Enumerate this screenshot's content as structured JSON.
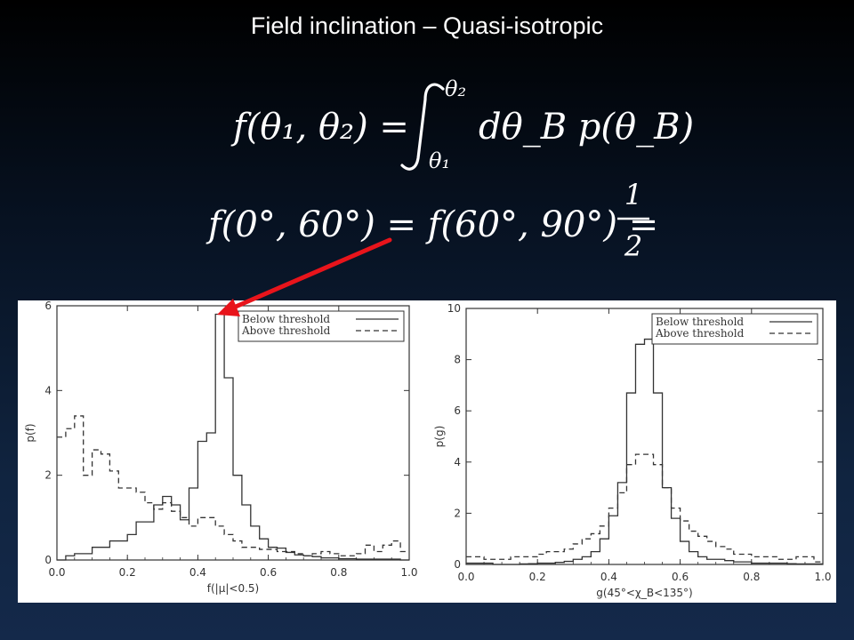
{
  "slide": {
    "title": "Field inclination – Quasi-isotropic"
  },
  "equations": [
    {
      "id": "eq1",
      "lhs": "f(θ₁, θ₂) =",
      "integral_upper": "θ₂",
      "integral_lower": "θ₁",
      "integrand": "dθ_B p(θ_B)"
    },
    {
      "id": "eq2",
      "lhs": "f(0°, 60°) = f(60°, 90°) =",
      "frac_num": "1",
      "frac_den": "2"
    }
  ],
  "colors": {
    "background_top": "#000000",
    "background_bottom": "#14294a",
    "arrow": "#e8141b",
    "plot_ink": "#333333"
  },
  "chart_data": [
    {
      "type": "line",
      "style": "step-histogram",
      "xlabel": "f(|μ|<0.5)",
      "ylabel": "p(f)",
      "xlim": [
        0.0,
        1.0
      ],
      "ylim": [
        0,
        6
      ],
      "xticks": [
        0.0,
        0.2,
        0.4,
        0.6,
        0.8,
        1.0
      ],
      "xtick_labels": [
        "0.0",
        "0.2",
        "0.4",
        "0.6",
        "0.8",
        "1.0"
      ],
      "yticks": [
        0,
        2,
        4,
        6
      ],
      "ytick_labels": [
        "0",
        "2",
        "4",
        "6"
      ],
      "legend_position": "top-right",
      "legend": [
        "Below threshold",
        "Above threshold"
      ],
      "bin_edges": [
        0.0,
        0.025,
        0.05,
        0.075,
        0.1,
        0.125,
        0.15,
        0.175,
        0.2,
        0.225,
        0.25,
        0.275,
        0.3,
        0.325,
        0.35,
        0.375,
        0.4,
        0.425,
        0.45,
        0.475,
        0.5,
        0.525,
        0.55,
        0.575,
        0.6,
        0.625,
        0.65,
        0.675,
        0.7,
        0.725,
        0.75,
        0.775,
        0.8,
        0.825,
        0.85,
        0.875,
        0.9,
        0.925,
        0.95,
        0.975,
        1.0
      ],
      "series": [
        {
          "name": "Below threshold",
          "dash": "solid",
          "values": [
            0.0,
            0.1,
            0.15,
            0.15,
            0.3,
            0.3,
            0.45,
            0.45,
            0.6,
            0.9,
            0.9,
            1.3,
            1.5,
            1.3,
            0.95,
            1.7,
            2.8,
            3.0,
            5.8,
            4.3,
            2.0,
            1.3,
            0.8,
            0.5,
            0.3,
            0.28,
            0.18,
            0.12,
            0.1,
            0.08,
            0.05,
            0.05,
            0.03,
            0.03,
            0.02,
            0.02,
            0.02,
            0.02,
            0.02,
            0.0
          ]
        },
        {
          "name": "Above threshold",
          "dash": "dashed",
          "values": [
            2.9,
            3.1,
            3.4,
            2.0,
            2.6,
            2.5,
            2.1,
            1.7,
            1.7,
            1.6,
            1.35,
            1.2,
            1.35,
            1.15,
            1.0,
            0.8,
            1.0,
            1.0,
            0.8,
            0.6,
            0.45,
            0.3,
            0.3,
            0.25,
            0.25,
            0.2,
            0.2,
            0.15,
            0.1,
            0.15,
            0.2,
            0.15,
            0.1,
            0.1,
            0.15,
            0.35,
            0.2,
            0.35,
            0.45,
            0.2
          ]
        }
      ]
    },
    {
      "type": "line",
      "style": "step-histogram",
      "xlabel": "g(45°<χ_B<135°)",
      "ylabel": "p(g)",
      "xlim": [
        0.0,
        1.0
      ],
      "ylim": [
        0,
        10
      ],
      "xticks": [
        0.0,
        0.2,
        0.4,
        0.6,
        0.8,
        1.0
      ],
      "xtick_labels": [
        "0.0",
        "0.2",
        "0.4",
        "0.6",
        "0.8",
        "1.0"
      ],
      "yticks": [
        0,
        2,
        4,
        6,
        8,
        10
      ],
      "ytick_labels": [
        "0",
        "2",
        "4",
        "6",
        "8",
        "10"
      ],
      "legend_position": "top-right",
      "legend": [
        "Below threshold",
        "Above threshold"
      ],
      "bin_edges": [
        0.0,
        0.025,
        0.05,
        0.075,
        0.1,
        0.125,
        0.15,
        0.175,
        0.2,
        0.225,
        0.25,
        0.275,
        0.3,
        0.325,
        0.35,
        0.375,
        0.4,
        0.425,
        0.45,
        0.475,
        0.5,
        0.525,
        0.55,
        0.575,
        0.6,
        0.625,
        0.65,
        0.675,
        0.7,
        0.725,
        0.75,
        0.775,
        0.8,
        0.825,
        0.85,
        0.875,
        0.9,
        0.925,
        0.95,
        0.975,
        1.0
      ],
      "series": [
        {
          "name": "Below threshold",
          "dash": "solid",
          "values": [
            0.05,
            0.05,
            0.05,
            0.0,
            0.0,
            0.0,
            0.02,
            0.03,
            0.05,
            0.05,
            0.08,
            0.12,
            0.2,
            0.3,
            0.5,
            1.0,
            1.9,
            3.2,
            6.7,
            8.6,
            8.8,
            6.7,
            3.0,
            1.8,
            0.9,
            0.5,
            0.3,
            0.2,
            0.2,
            0.15,
            0.1,
            0.1,
            0.05,
            0.05,
            0.05,
            0.05,
            0.03,
            0.02,
            0.02,
            0.02
          ]
        },
        {
          "name": "Above threshold",
          "dash": "dashed",
          "values": [
            0.3,
            0.3,
            0.2,
            0.2,
            0.2,
            0.3,
            0.3,
            0.3,
            0.4,
            0.5,
            0.5,
            0.6,
            0.8,
            1.0,
            1.2,
            1.5,
            2.2,
            2.8,
            3.9,
            4.3,
            4.3,
            3.9,
            3.0,
            2.2,
            1.7,
            1.3,
            1.1,
            0.9,
            0.7,
            0.6,
            0.4,
            0.4,
            0.3,
            0.3,
            0.3,
            0.2,
            0.2,
            0.3,
            0.3,
            0.1
          ]
        }
      ]
    }
  ]
}
